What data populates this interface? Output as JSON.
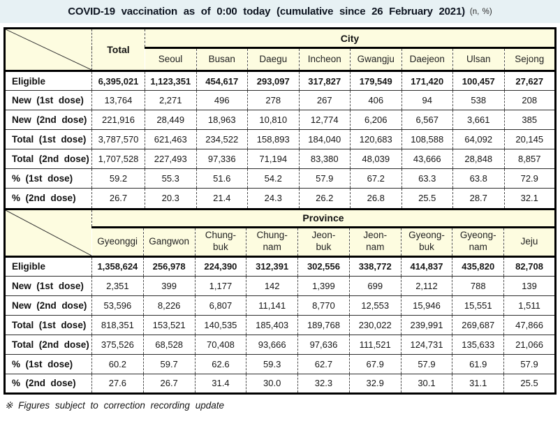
{
  "title": {
    "main": "COVID-19 vaccination as of 0:00 today (cumulative since 26 February 2021)",
    "unit": "(n, %)"
  },
  "colors": {
    "title_bg": "#e7f1f4",
    "header_bg": "#fdfce0",
    "border": "#000000"
  },
  "city_section": {
    "group_label": "City",
    "total_label": "Total",
    "columns": [
      "Seoul",
      "Busan",
      "Daegu",
      "Incheon",
      "Gwangju",
      "Daejeon",
      "Ulsan",
      "Sejong"
    ],
    "rows": [
      {
        "label": "Eligible",
        "total": "6,395,021",
        "values": [
          "1,123,351",
          "454,617",
          "293,097",
          "317,827",
          "179,549",
          "171,420",
          "100,457",
          "27,627"
        ]
      },
      {
        "label": "New (1st dose)",
        "total": "13,764",
        "values": [
          "2,271",
          "496",
          "278",
          "267",
          "406",
          "94",
          "538",
          "208"
        ]
      },
      {
        "label": "New (2nd dose)",
        "total": "221,916",
        "values": [
          "28,449",
          "18,963",
          "10,810",
          "12,774",
          "6,206",
          "6,567",
          "3,661",
          "385"
        ]
      },
      {
        "label": "Total (1st dose)",
        "total": "3,787,570",
        "values": [
          "621,463",
          "234,522",
          "158,893",
          "184,040",
          "120,683",
          "108,588",
          "64,092",
          "20,145"
        ]
      },
      {
        "label": "Total (2nd dose)",
        "total": "1,707,528",
        "values": [
          "227,493",
          "97,336",
          "71,194",
          "83,380",
          "48,039",
          "43,666",
          "28,848",
          "8,857"
        ]
      },
      {
        "label": "% (1st dose)",
        "total": "59.2",
        "values": [
          "55.3",
          "51.6",
          "54.2",
          "57.9",
          "67.2",
          "63.3",
          "63.8",
          "72.9"
        ]
      },
      {
        "label": "% (2nd dose)",
        "total": "26.7",
        "values": [
          "20.3",
          "21.4",
          "24.3",
          "26.2",
          "26.8",
          "25.5",
          "28.7",
          "32.1"
        ]
      }
    ]
  },
  "province_section": {
    "group_label": "Province",
    "columns": [
      "Gyeonggi",
      "Gangwon",
      "Chung-\nbuk",
      "Chung-\nnam",
      "Jeon-\nbuk",
      "Jeon-\nnam",
      "Gyeong-\nbuk",
      "Gyeong-\nnam",
      "Jeju"
    ],
    "rows": [
      {
        "label": "Eligible",
        "values": [
          "1,358,624",
          "256,978",
          "224,390",
          "312,391",
          "302,556",
          "338,772",
          "414,837",
          "435,820",
          "82,708"
        ]
      },
      {
        "label": "New (1st dose)",
        "values": [
          "2,351",
          "399",
          "1,177",
          "142",
          "1,399",
          "699",
          "2,112",
          "788",
          "139"
        ]
      },
      {
        "label": "New (2nd dose)",
        "values": [
          "53,596",
          "8,226",
          "6,807",
          "11,141",
          "8,770",
          "12,553",
          "15,946",
          "15,551",
          "1,511"
        ]
      },
      {
        "label": "Total (1st dose)",
        "values": [
          "818,351",
          "153,521",
          "140,535",
          "185,403",
          "189,768",
          "230,022",
          "239,991",
          "269,687",
          "47,866"
        ]
      },
      {
        "label": "Total (2nd dose)",
        "values": [
          "375,526",
          "68,528",
          "70,408",
          "93,666",
          "97,636",
          "111,521",
          "124,731",
          "135,633",
          "21,066"
        ]
      },
      {
        "label": "% (1st dose)",
        "values": [
          "60.2",
          "59.7",
          "62.6",
          "59.3",
          "62.7",
          "67.9",
          "57.9",
          "61.9",
          "57.9"
        ]
      },
      {
        "label": "% (2nd dose)",
        "values": [
          "27.6",
          "26.7",
          "31.4",
          "30.0",
          "32.3",
          "32.9",
          "30.1",
          "31.1",
          "25.5"
        ]
      }
    ]
  },
  "footnote": "※ Figures subject to correction recording update"
}
